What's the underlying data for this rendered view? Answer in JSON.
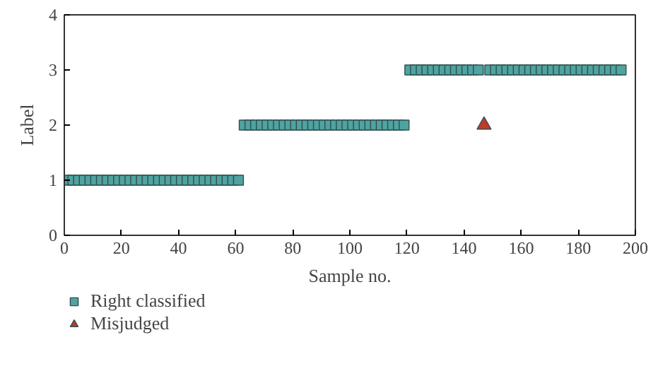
{
  "chart_data": {
    "type": "scatter",
    "xlabel": "Sample no.",
    "ylabel": "Label",
    "xlim": [
      0,
      200
    ],
    "xticks": [
      0,
      20,
      40,
      60,
      80,
      100,
      120,
      140,
      160,
      180,
      200
    ],
    "ylim": [
      0,
      4
    ],
    "yticks": [
      0,
      1,
      2,
      3,
      4
    ],
    "grid": false,
    "legend": "bottom left",
    "series": [
      {
        "name": "Right classified",
        "color": "#4fa3a0",
        "marker": "square",
        "x": [
          1,
          3,
          5,
          7,
          9,
          11,
          13,
          15,
          17,
          19,
          21,
          23,
          25,
          27,
          29,
          31,
          33,
          35,
          37,
          39,
          41,
          43,
          45,
          47,
          49,
          51,
          53,
          55,
          57,
          59,
          61,
          63,
          65,
          67,
          69,
          71,
          73,
          75,
          77,
          79,
          81,
          83,
          85,
          87,
          89,
          91,
          93,
          95,
          97,
          99,
          101,
          103,
          105,
          107,
          109,
          111,
          113,
          115,
          117,
          119,
          121,
          123,
          125,
          127,
          129,
          131,
          133,
          135,
          137,
          139,
          141,
          143,
          145,
          149,
          151,
          153,
          155,
          157,
          159,
          161,
          163,
          165,
          167,
          169,
          171,
          173,
          175,
          177,
          179,
          181,
          183,
          185,
          187,
          189,
          191,
          193,
          195
        ],
        "values": [
          1,
          1,
          1,
          1,
          1,
          1,
          1,
          1,
          1,
          1,
          1,
          1,
          1,
          1,
          1,
          1,
          1,
          1,
          1,
          1,
          1,
          1,
          1,
          1,
          1,
          1,
          1,
          1,
          1,
          1,
          1,
          2,
          2,
          2,
          2,
          2,
          2,
          2,
          2,
          2,
          2,
          2,
          2,
          2,
          2,
          2,
          2,
          2,
          2,
          2,
          2,
          2,
          2,
          2,
          2,
          2,
          2,
          2,
          2,
          2,
          3,
          3,
          3,
          3,
          3,
          3,
          3,
          3,
          3,
          3,
          3,
          3,
          3,
          3,
          3,
          3,
          3,
          3,
          3,
          3,
          3,
          3,
          3,
          3,
          3,
          3,
          3,
          3,
          3,
          3,
          3,
          3,
          3,
          3,
          3,
          3,
          3
        ]
      },
      {
        "name": "Misjudged",
        "color": "#c0392b",
        "marker": "triangle",
        "x": [
          147
        ],
        "values": [
          2
        ]
      }
    ]
  }
}
